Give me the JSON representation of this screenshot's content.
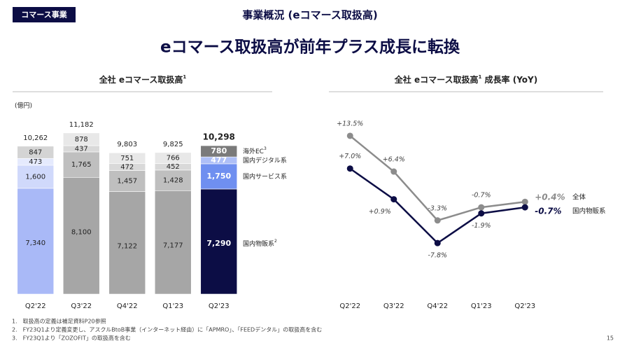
{
  "header": {
    "tag": "コマース事業",
    "title": "事業概況 (eコマース取扱高)",
    "headline": "eコマース取扱高が前年プラス成長に転換"
  },
  "chart_data": [
    {
      "type": "stacked-bar",
      "title": "全社 eコマース取扱高",
      "title_note": "1",
      "unit": "(億円)",
      "categories": [
        "Q2'22",
        "Q3'22",
        "Q4'22",
        "Q1'23",
        "Q2'23"
      ],
      "ylim": [
        0,
        12000
      ],
      "series": [
        {
          "name": "国内物販系",
          "note": "2",
          "values": [
            7340,
            8100,
            7122,
            7177,
            7290
          ],
          "value_labels": [
            "7,340",
            "8,100",
            "7,122",
            "7,177",
            "7,290"
          ],
          "colors": [
            "#a9b9f7",
            "#a6a6a6",
            "#a6a6a6",
            "#a6a6a6",
            "#0c0d45"
          ]
        },
        {
          "name": "国内サービス系",
          "values": [
            1600,
            1765,
            1457,
            1428,
            1750
          ],
          "value_labels": [
            "1,600",
            "1,765",
            "1,457",
            "1,428",
            "1,750"
          ],
          "colors": [
            "#d0d9fb",
            "#bfbfbf",
            "#bfbfbf",
            "#bfbfbf",
            "#6f8ff0"
          ]
        },
        {
          "name": "国内デジタル系",
          "values": [
            473,
            437,
            472,
            452,
            477
          ],
          "value_labels": [
            "473",
            "437",
            "472",
            "452",
            "477"
          ],
          "colors": [
            "#e5eafd",
            "#d9d9d9",
            "#d9d9d9",
            "#d9d9d9",
            "#aebff7"
          ]
        },
        {
          "name": "海外EC",
          "note": "3",
          "values": [
            847,
            878,
            751,
            766,
            780
          ],
          "value_labels": [
            "847",
            "878",
            "751",
            "766",
            "780"
          ],
          "colors": [
            "#d4d4d4",
            "#e8e8e8",
            "#e8e8e8",
            "#e8e8e8",
            "#7a7a7a"
          ]
        }
      ],
      "total_labels": [
        "10,262",
        "11,182",
        "9,803",
        "9,825",
        "10,298"
      ]
    },
    {
      "type": "line",
      "title": "全社 eコマース取扱高",
      "title_note": "1",
      "title_suffix": " 成長率 (YoY)",
      "categories": [
        "Q2'22",
        "Q3'22",
        "Q4'22",
        "Q1'23",
        "Q2'23"
      ],
      "ylim": [
        -10,
        16
      ],
      "series": [
        {
          "name": "全体",
          "color": "#8c8c8c",
          "values": [
            13.5,
            6.4,
            -3.3,
            -0.7,
            0.4
          ],
          "value_labels": [
            "+13.5%",
            "+6.4%",
            "-3.3%",
            "-0.7%",
            "+0.4%"
          ]
        },
        {
          "name": "国内物販系",
          "color": "#0c0d45",
          "values": [
            7.0,
            0.9,
            -7.8,
            -1.9,
            -0.7
          ],
          "value_labels": [
            "+7.0%",
            "+0.9%",
            "-7.8%",
            "-1.9%",
            "-0.7%"
          ]
        }
      ]
    }
  ],
  "footnotes": [
    "1.　取扱高の定義は補足資料P20参照",
    "2.　FY23Q1より定義変更し、アスクルBtoB事業（インターネット経由）に「APMRO」、「FEEDデンタル」の取扱高を含む",
    "3.　FY23Q1より「ZOZOFIT」の取扱高を含む"
  ],
  "page_number": "15"
}
